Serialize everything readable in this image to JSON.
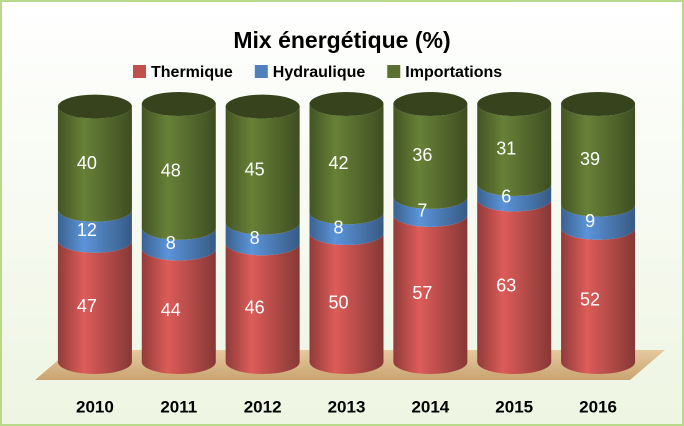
{
  "chart_data": {
    "type": "stacked-cylinder",
    "title": "Mix énergétique (%)",
    "categories": [
      "2010",
      "2011",
      "2012",
      "2013",
      "2014",
      "2015",
      "2016"
    ],
    "series": [
      {
        "name": "Thermique",
        "color": "#c0504d",
        "values": [
          47,
          44,
          46,
          50,
          57,
          63,
          52
        ]
      },
      {
        "name": "Hydraulique",
        "color": "#4f81bd",
        "values": [
          12,
          8,
          8,
          8,
          7,
          6,
          9
        ]
      },
      {
        "name": "Importations",
        "color": "#5a7030",
        "values": [
          40,
          48,
          45,
          42,
          36,
          31,
          39
        ]
      }
    ],
    "ylim": [
      0,
      100
    ],
    "legend": "top"
  }
}
